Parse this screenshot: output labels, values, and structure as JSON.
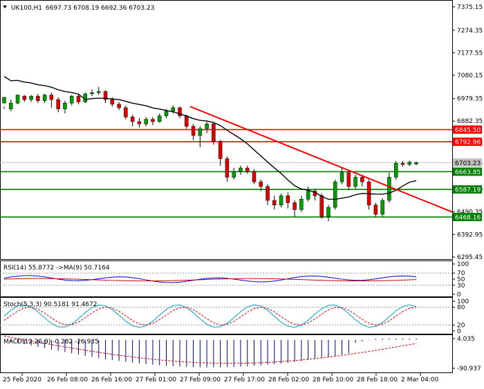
{
  "header": {
    "symbol": "UK100,H1",
    "ohlc": "6697.73 6708.19 6692.36 6703.23"
  },
  "price_axis": {
    "labels": [
      "7375.15",
      "7274.35",
      "7177.55",
      "7080.15",
      "6979.35",
      "6882.35",
      "6792.96",
      "6703.23",
      "6587.19",
      "6490.35",
      "6392.95",
      "6295.45"
    ]
  },
  "levels": [
    {
      "value": "6845.50",
      "color": "#ff0000"
    },
    {
      "value": "6792.96",
      "color": "#ff0000"
    },
    {
      "value": "6663.85",
      "color": "#008000"
    },
    {
      "value": "6587.19",
      "color": "#008000"
    },
    {
      "value": "6468.16",
      "color": "#008000"
    }
  ],
  "current_price": {
    "value": "6703.23",
    "color": "#c0c0c0"
  },
  "rsi": {
    "label": "RSI(14) 55.8772  ->MA(9) 50.7164",
    "scale": [
      "100",
      "70",
      "50",
      "30",
      "0"
    ]
  },
  "stoch": {
    "label": "Stoch(5,3,3) 90.5181 91.4672",
    "scale": [
      "100",
      "80",
      "20",
      "0"
    ]
  },
  "macd": {
    "label": "MACD(12,26,9) -0.282 -26.935",
    "scale": [
      "4.035",
      "-90.937"
    ]
  },
  "time_axis": {
    "labels": [
      "25 Feb 2020",
      "26 Feb 08:00",
      "26 Feb 16:00",
      "27 Feb 01:00",
      "27 Feb 09:00",
      "27 Feb 17:00",
      "28 Feb 02:00",
      "28 Feb 10:00",
      "28 Feb 18:00",
      "2 Mar 04:00"
    ]
  },
  "colors": {
    "bull": "#00a000",
    "bear": "#e00000",
    "ma": "#000000",
    "trendline": "#ff0000",
    "rsi": "#0000cc",
    "rsi_ma": "#cc0000",
    "stoch_main": "#00a0c8",
    "stoch_signal": "#cc0000",
    "macd_hist": "#000080",
    "macd_signal": "#cc0000"
  },
  "chart_data": {
    "type": "candlestick",
    "timeframe": "H1",
    "ylim": [
      6295.45,
      7375.15
    ],
    "overlays": [
      "moving-average",
      "trendline"
    ],
    "horizontal_levels": [
      6845.5,
      6792.96,
      6663.85,
      6587.19,
      6468.16
    ],
    "trendline": {
      "from": 6945,
      "to": 6490
    },
    "candles": [
      [
        6960,
        6985,
        6945,
        6935
      ],
      [
        6935,
        6960,
        6975,
        6925
      ],
      [
        6960,
        6995,
        6995,
        6955
      ],
      [
        6990,
        6975,
        6995,
        6965
      ],
      [
        6975,
        6990,
        6995,
        6965
      ],
      [
        6990,
        6970,
        7000,
        6960
      ],
      [
        6970,
        6995,
        7000,
        6960
      ],
      [
        6995,
        6975,
        7005,
        6940
      ],
      [
        6975,
        6935,
        6985,
        6920
      ],
      [
        6935,
        6960,
        6970,
        6915
      ],
      [
        6960,
        6990,
        6995,
        6950
      ],
      [
        6990,
        6965,
        7000,
        6955
      ],
      [
        6965,
        7000,
        7005,
        6960
      ],
      [
        7000,
        7005,
        7020,
        6990
      ],
      [
        7005,
        7010,
        7030,
        6995
      ],
      [
        7010,
        6975,
        7015,
        6960
      ],
      [
        6975,
        6955,
        6985,
        6945
      ],
      [
        6955,
        6940,
        6965,
        6930
      ],
      [
        6940,
        6900,
        6950,
        6890
      ],
      [
        6900,
        6880,
        6910,
        6860
      ],
      [
        6880,
        6870,
        6895,
        6855
      ],
      [
        6870,
        6890,
        6900,
        6860
      ],
      [
        6890,
        6880,
        6900,
        6865
      ],
      [
        6880,
        6905,
        6915,
        6875
      ],
      [
        6905,
        6925,
        6935,
        6895
      ],
      [
        6925,
        6940,
        6950,
        6915
      ],
      [
        6940,
        6905,
        6945,
        6895
      ],
      [
        6905,
        6860,
        6910,
        6850
      ],
      [
        6860,
        6820,
        6870,
        6800
      ],
      [
        6820,
        6850,
        6860,
        6770
      ],
      [
        6850,
        6870,
        6880,
        6830
      ],
      [
        6870,
        6795,
        6880,
        6780
      ],
      [
        6795,
        6720,
        6800,
        6690
      ],
      [
        6720,
        6640,
        6730,
        6620
      ],
      [
        6640,
        6665,
        6680,
        6630
      ],
      [
        6665,
        6680,
        6690,
        6650
      ],
      [
        6680,
        6665,
        6690,
        6655
      ],
      [
        6665,
        6620,
        6675,
        6610
      ],
      [
        6620,
        6600,
        6630,
        6580
      ],
      [
        6600,
        6540,
        6610,
        6520
      ],
      [
        6540,
        6520,
        6560,
        6500
      ],
      [
        6520,
        6560,
        6570,
        6510
      ],
      [
        6560,
        6530,
        6575,
        6505
      ],
      [
        6530,
        6500,
        6540,
        6470
      ],
      [
        6500,
        6545,
        6560,
        6490
      ],
      [
        6545,
        6580,
        6600,
        6535
      ],
      [
        6580,
        6560,
        6590,
        6540
      ],
      [
        6560,
        6470,
        6570,
        6460
      ],
      [
        6470,
        6510,
        6520,
        6450
      ],
      [
        6510,
        6620,
        6630,
        6500
      ],
      [
        6620,
        6660,
        6680,
        6610
      ],
      [
        6660,
        6600,
        6670,
        6585
      ],
      [
        6600,
        6640,
        6650,
        6590
      ],
      [
        6640,
        6620,
        6650,
        6600
      ],
      [
        6620,
        6520,
        6630,
        6500
      ],
      [
        6520,
        6480,
        6530,
        6470
      ],
      [
        6480,
        6540,
        6550,
        6470
      ],
      [
        6540,
        6640,
        6660,
        6530
      ],
      [
        6640,
        6700,
        6710,
        6630
      ],
      [
        6700,
        6695,
        6710,
        6685
      ],
      [
        6695,
        6705,
        6712,
        6688
      ],
      [
        6697,
        6703,
        6708,
        6692
      ]
    ]
  }
}
